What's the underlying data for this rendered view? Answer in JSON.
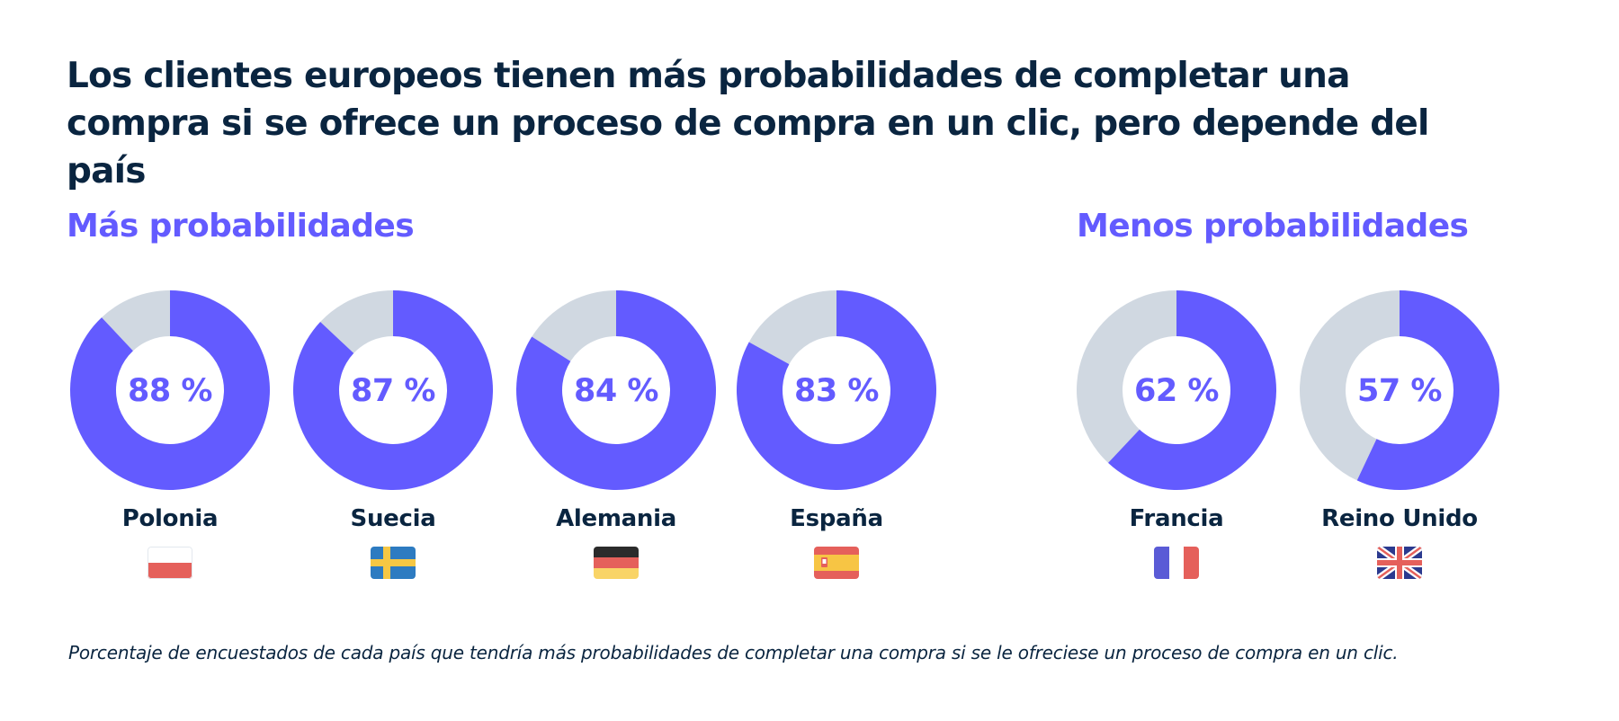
{
  "title": "Los clientes europeos tienen más probabilidades de completar una compra si se ofrece un proceso de compra en un clic, pero depende del país",
  "groups": {
    "more": {
      "heading": "Más probabilidades"
    },
    "less": {
      "heading": "Menos probabilidades"
    }
  },
  "footnote": "Porcentaje de encuestados de cada país que tendría más probabilidades de completar una compra si se le ofreciese un proceso de compra en un clic.",
  "colors": {
    "accent": "#635bff",
    "remainder": "#d0d8e1",
    "heading": "#635bff",
    "text": "#0a2540"
  },
  "chart_data": {
    "type": "pie",
    "style": "donut",
    "title": "Los clientes europeos tienen más probabilidades de completar una compra si se ofrece un proceso de compra en un clic, pero depende del país",
    "categories": [
      "Polonia",
      "Suecia",
      "Alemania",
      "España",
      "Francia",
      "Reino Unido"
    ],
    "values": [
      88,
      87,
      84,
      83,
      62,
      57
    ],
    "value_labels": [
      "88 %",
      "87 %",
      "84 %",
      "83 %",
      "62 %",
      "57 %"
    ],
    "unit": "%",
    "groups": [
      "Más probabilidades",
      "Más probabilidades",
      "Más probabilidades",
      "Más probabilidades",
      "Menos probabilidades",
      "Menos probabilidades"
    ],
    "flags": [
      "flag-poland-icon",
      "flag-sweden-icon",
      "flag-germany-icon",
      "flag-spain-icon",
      "flag-france-icon",
      "flag-uk-icon"
    ],
    "note": "Porcentaje de encuestados de cada país que tendría más probabilidades de completar una compra si se le ofreciese un proceso de compra en un clic."
  }
}
